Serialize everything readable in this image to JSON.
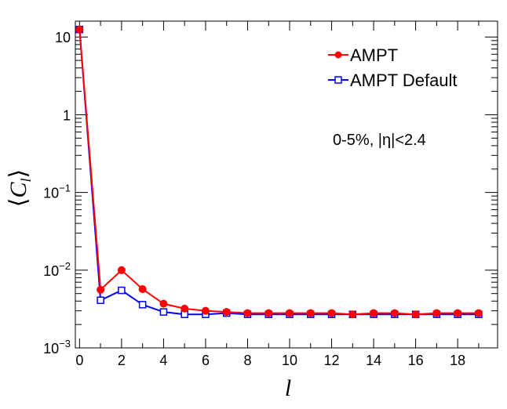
{
  "chart_data": {
    "type": "line",
    "xlabel": "l",
    "ylabel": "⟨C_l⟩",
    "xlim": [
      -0.2,
      19.9
    ],
    "ylim": [
      0.001,
      16
    ],
    "yscale": "log",
    "grid": false,
    "legend_position": "top-right",
    "x_ticks": [
      0,
      2,
      4,
      6,
      8,
      10,
      12,
      14,
      16,
      18
    ],
    "y_ticks": [
      {
        "value": 0.001,
        "base": "10",
        "exp": "−3"
      },
      {
        "value": 0.01,
        "base": "10",
        "exp": "−2"
      },
      {
        "value": 0.1,
        "base": "10",
        "exp": "−1"
      },
      {
        "value": 1,
        "base": "1",
        "exp": ""
      },
      {
        "value": 10,
        "base": "10",
        "exp": ""
      }
    ],
    "annotation": "0-5%, |η|<2.4",
    "series": [
      {
        "name": "AMPT",
        "color": "#ff0000",
        "marker": "filled-circle",
        "x": [
          0,
          1,
          2,
          3,
          4,
          5,
          6,
          7,
          8,
          9,
          10,
          11,
          12,
          13,
          14,
          15,
          16,
          17,
          18,
          19
        ],
        "values": [
          12.5,
          0.0056,
          0.01,
          0.0057,
          0.0037,
          0.0032,
          0.003,
          0.0029,
          0.0028,
          0.0028,
          0.0028,
          0.0028,
          0.0028,
          0.0027,
          0.0028,
          0.0028,
          0.0027,
          0.0028,
          0.0028,
          0.0028
        ]
      },
      {
        "name": "AMPT Default",
        "color": "#0000ff",
        "marker": "open-square",
        "x": [
          0,
          1,
          2,
          3,
          4,
          5,
          6,
          7,
          8,
          9,
          10,
          11,
          12,
          13,
          14,
          15,
          16,
          17,
          18,
          19
        ],
        "values": [
          12.5,
          0.0041,
          0.0055,
          0.0036,
          0.0029,
          0.0027,
          0.0027,
          0.0028,
          0.0027,
          0.0027,
          0.0027,
          0.0027,
          0.0027,
          0.0027,
          0.0027,
          0.0027,
          0.0027,
          0.0027,
          0.0027,
          0.0027
        ]
      }
    ]
  }
}
